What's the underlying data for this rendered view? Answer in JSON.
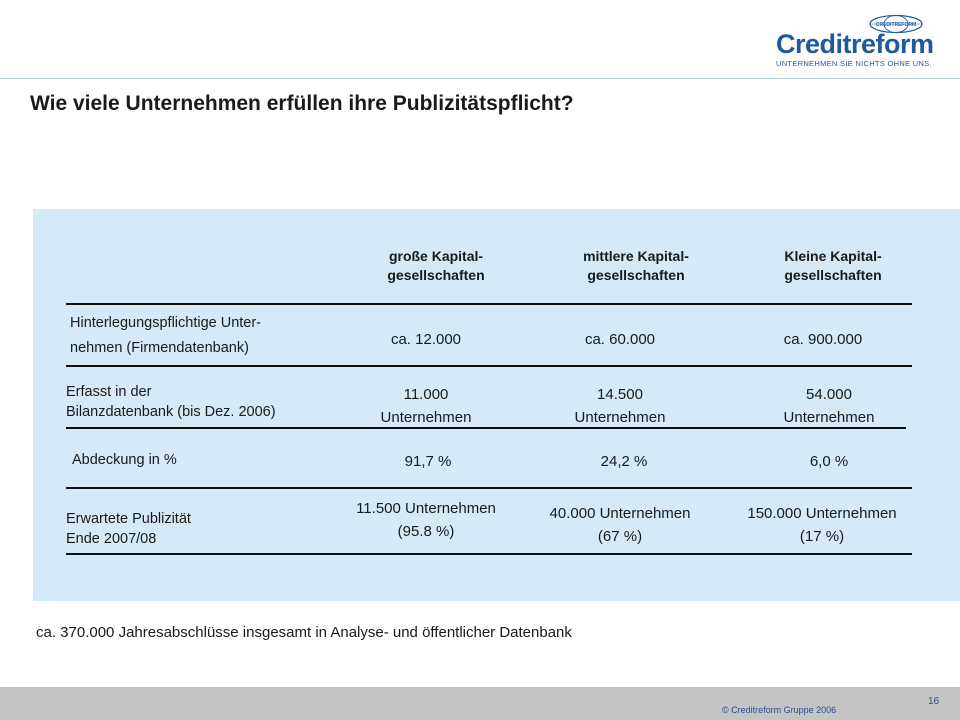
{
  "brand": {
    "name": "Creditreform",
    "tagline": "UNTERNEHMEN SIE NICHTS OHNE UNS.",
    "globe_text": "CREDITREFORM",
    "color": "#1f5a9e"
  },
  "title": "Wie viele Unternehmen erfüllen ihre Publizitätspflicht?",
  "table": {
    "columns": [
      {
        "line1": "große Kapital-",
        "line2": "gesellschaften"
      },
      {
        "line1": "mittlere Kapital-",
        "line2": "gesellschaften"
      },
      {
        "line1": "Kleine Kapital-",
        "line2": "gesellschaften"
      }
    ],
    "rows": [
      {
        "label_line1": "Hinterlegungspflichtige Unter-",
        "label_line2": "nehmen (Firmendatenbank)",
        "cells": [
          {
            "line1": "ca. 12.000",
            "line2": ""
          },
          {
            "line1": "ca. 60.000",
            "line2": ""
          },
          {
            "line1": "ca. 900.000",
            "line2": ""
          }
        ]
      },
      {
        "label_line1": "Erfasst in der",
        "label_line2": "Bilanzdatenbank (bis Dez. 2006)",
        "cells": [
          {
            "line1": "11.000",
            "line2": "Unternehmen"
          },
          {
            "line1": "14.500",
            "line2": "Unternehmen"
          },
          {
            "line1": "54.000",
            "line2": "Unternehmen"
          }
        ]
      },
      {
        "label_line1": "Abdeckung in %",
        "label_line2": "",
        "cells": [
          {
            "line1": "91,7 %",
            "line2": ""
          },
          {
            "line1": "24,2 %",
            "line2": ""
          },
          {
            "line1": "6,0 %",
            "line2": ""
          }
        ]
      },
      {
        "label_line1": "Erwartete Publizität",
        "label_line2": "Ende 2007/08",
        "cells": [
          {
            "line1": "11.500  Unternehmen",
            "line2": "(95.8 %)"
          },
          {
            "line1": "40.000  Unternehmen",
            "line2": "(67 %)"
          },
          {
            "line1": "150.000  Unternehmen",
            "line2": "(17 %)"
          }
        ]
      }
    ]
  },
  "footnote": "ca. 370.000 Jahresabschlüsse insgesamt in Analyse- und öffentlicher Datenbank",
  "footer": {
    "page_number": "16",
    "copyright": "© Creditreform Gruppe 2006"
  }
}
